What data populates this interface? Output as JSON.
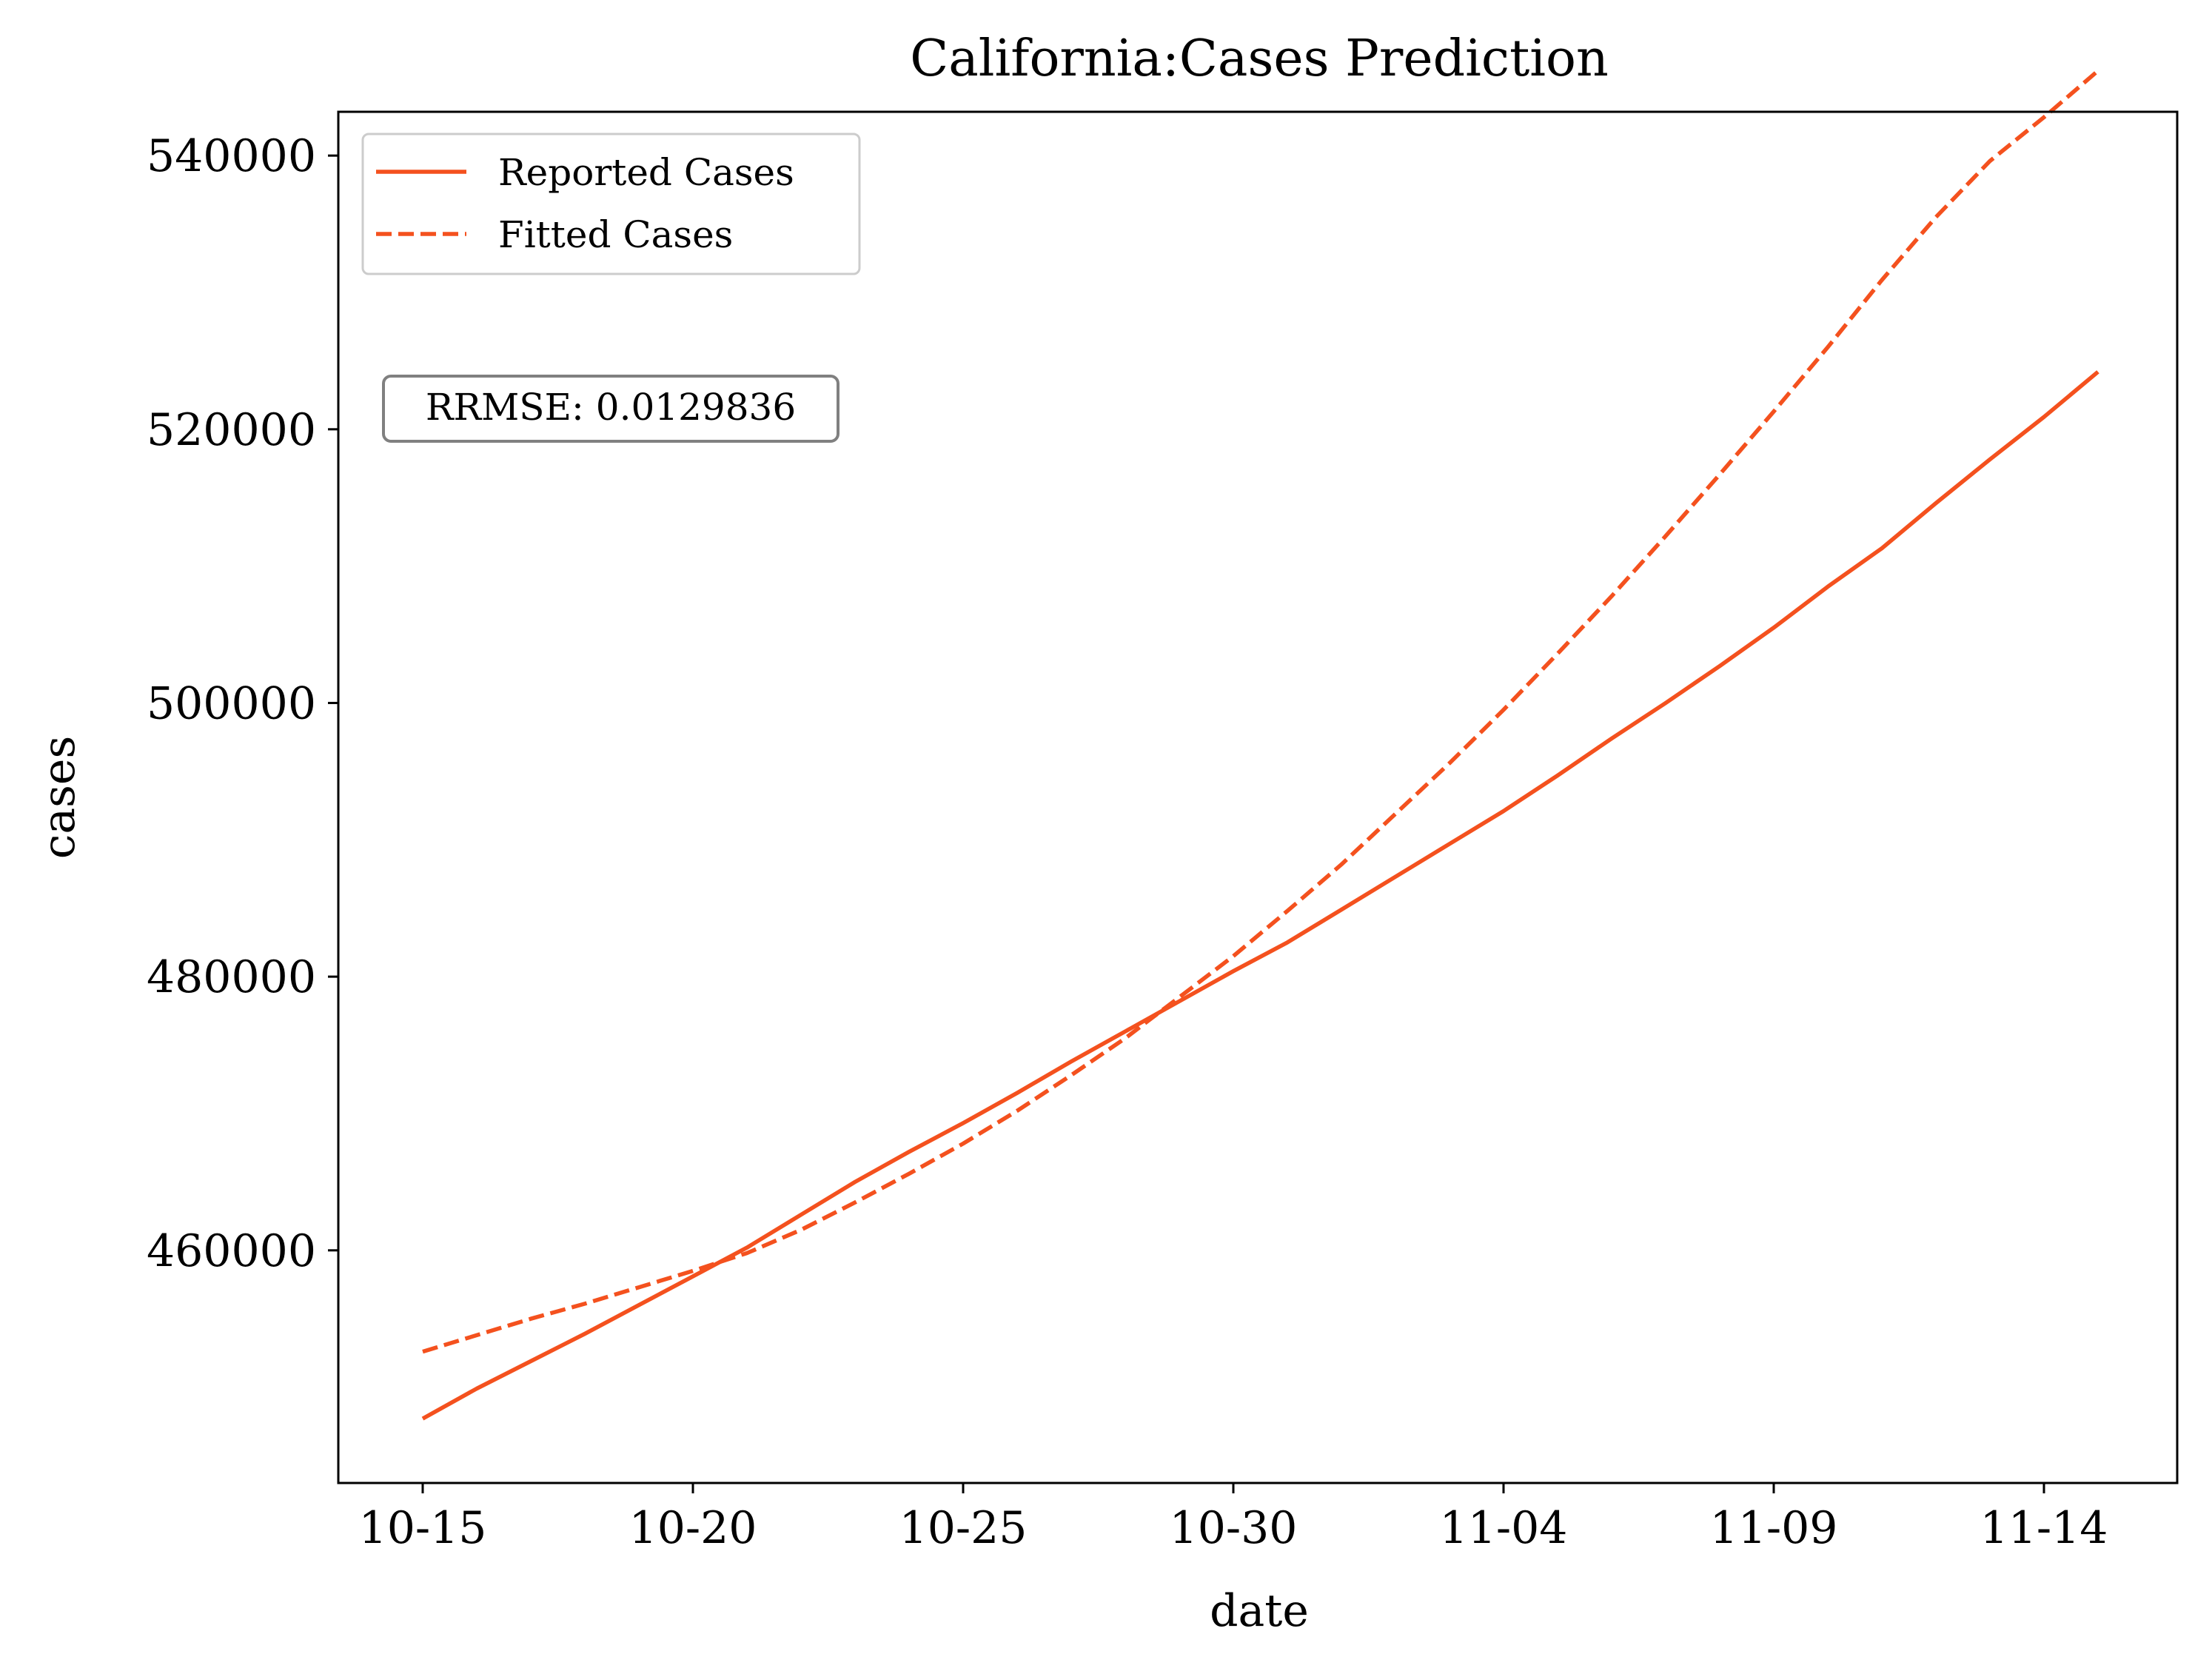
{
  "chart_data": {
    "type": "line",
    "title": "California:Cases Prediction",
    "xlabel": "date",
    "ylabel": "cases",
    "x_ticks": [
      "10-15",
      "10-20",
      "10-25",
      "10-30",
      "11-04",
      "11-09",
      "11-14"
    ],
    "y_ticks": [
      "460000",
      "480000",
      "500000",
      "520000",
      "540000"
    ],
    "ylim": [
      443000,
      543200
    ],
    "grid": false,
    "legend_position": "top-left",
    "annotation": "RRMSE: 0.0129836",
    "series": [
      {
        "name": "Reported Cases",
        "style": "solid",
        "color": "#f4511e",
        "x": [
          "10-15",
          "10-16",
          "10-17",
          "10-18",
          "10-19",
          "10-20",
          "10-21",
          "10-22",
          "10-23",
          "10-24",
          "10-25",
          "10-26",
          "10-27",
          "10-28",
          "10-29",
          "10-30",
          "10-31",
          "11-01",
          "11-02",
          "11-03",
          "11-04",
          "11-05",
          "11-06",
          "11-07",
          "11-08",
          "11-09",
          "11-10",
          "11-11",
          "11-12",
          "11-13",
          "11-14",
          "11-15"
        ],
        "y": [
          447700,
          449900,
          451900,
          453900,
          456000,
          458100,
          460200,
          462600,
          465000,
          467200,
          469300,
          471500,
          473800,
          476000,
          478200,
          480400,
          482500,
          484900,
          487300,
          489700,
          492100,
          494700,
          497400,
          500000,
          502700,
          505500,
          508500,
          511300,
          514600,
          517800,
          520900,
          524200
        ]
      },
      {
        "name": "Fitted Cases",
        "style": "dashed",
        "color": "#f4511e",
        "x": [
          "10-15",
          "10-16",
          "10-17",
          "10-18",
          "10-19",
          "10-20",
          "10-21",
          "10-22",
          "10-23",
          "10-24",
          "10-25",
          "10-26",
          "10-27",
          "10-28",
          "10-29",
          "10-30",
          "10-31",
          "11-01",
          "11-02",
          "11-03",
          "11-04",
          "11-05",
          "11-06",
          "11-07",
          "11-08",
          "11-09",
          "11-10",
          "11-11",
          "11-12",
          "11-13",
          "11-14",
          "11-15"
        ],
        "y": [
          452600,
          453800,
          455000,
          456100,
          457300,
          458500,
          459800,
          461500,
          463500,
          465600,
          467800,
          470200,
          472800,
          475500,
          478500,
          481500,
          484800,
          488200,
          491900,
          495600,
          499500,
          503600,
          507800,
          512200,
          516700,
          521300,
          526000,
          530900,
          535500,
          539600,
          542800,
          546200
        ]
      }
    ]
  }
}
